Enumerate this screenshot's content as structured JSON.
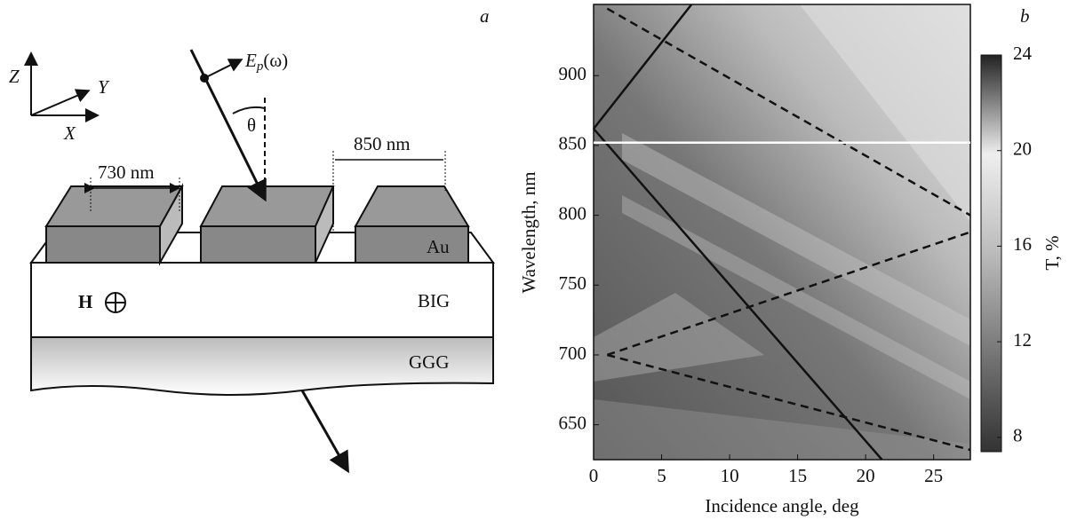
{
  "diagram": {
    "label": "a",
    "axes": {
      "z": "Z",
      "y": "Y",
      "x": "X"
    },
    "field": {
      "symbol": "E",
      "subscript": "p",
      "argument": "(ω)"
    },
    "angle": "θ",
    "gap_width": "730 nm",
    "period": "850 nm",
    "layers": {
      "top": "Au",
      "film": "BIG",
      "substrate": "GGG"
    },
    "magnetic_field": "H"
  },
  "chart_data": {
    "type": "line",
    "label": "b",
    "xlabel": "Incidence angle, deg",
    "ylabel": "Wavelength, nm",
    "xlim": [
      0,
      27.7
    ],
    "ylim": [
      625,
      951
    ],
    "xticks": [
      0,
      5,
      10,
      15,
      20,
      25
    ],
    "yticks": [
      650,
      700,
      750,
      800,
      850,
      900
    ],
    "series": [
      {
        "color": "#111111",
        "dashed": false,
        "x": [
          0,
          7.2
        ],
        "values": [
          862,
          951
        ]
      },
      {
        "color": "#111111",
        "dashed": false,
        "x": [
          0,
          21.2
        ],
        "values": [
          862,
          625
        ]
      },
      {
        "color": "#111111",
        "dashed": true,
        "x": [
          1,
          27.7
        ],
        "values": [
          948,
          800
        ]
      },
      {
        "color": "#111111",
        "dashed": true,
        "x": [
          1,
          27.7
        ],
        "values": [
          700,
          788
        ]
      },
      {
        "color": "#111111",
        "dashed": true,
        "x": [
          1,
          27.7
        ],
        "values": [
          700,
          632
        ]
      },
      {
        "color": "#ffffff",
        "dashed": false,
        "x": [
          0,
          27.7
        ],
        "values": [
          852,
          852
        ]
      }
    ],
    "colorbar": {
      "label": "T, %",
      "lim": [
        7.4,
        24
      ],
      "ticks": [
        8,
        12,
        16,
        20,
        24
      ]
    }
  }
}
